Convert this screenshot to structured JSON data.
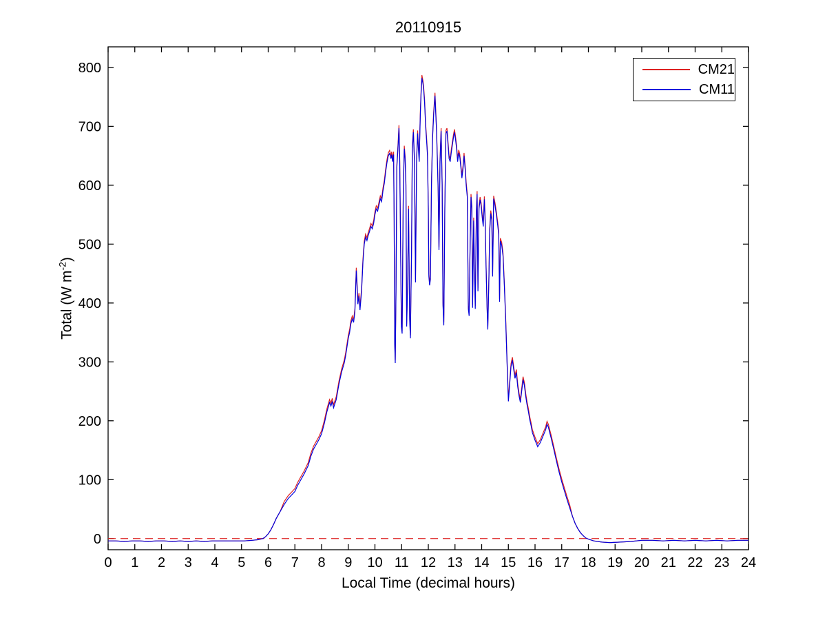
{
  "figure": {
    "title": "20110915"
  },
  "chart_data": {
    "type": "line",
    "title": "20110915",
    "xlabel": "Local Time (decimal hours)",
    "ylabel": "Total (W m^-2)",
    "ylabel_prefix": "Total (W m",
    "ylabel_exponent": "-2",
    "ylabel_suffix": ")",
    "xlim": [
      0,
      24
    ],
    "ylim": [
      -19,
      835
    ],
    "xticks": [
      0,
      1,
      2,
      3,
      4,
      5,
      6,
      7,
      8,
      9,
      10,
      11,
      12,
      13,
      14,
      15,
      16,
      17,
      18,
      19,
      20,
      21,
      22,
      23,
      24
    ],
    "yticks": [
      0,
      100,
      200,
      300,
      400,
      500,
      600,
      700,
      800
    ],
    "grid": false,
    "legend_position": "northeast",
    "series": [
      {
        "name": "CM21",
        "color": "#dd2222",
        "style": "solid",
        "description": "Nearly identical to CM11; drawn beneath it, approx +5 W m-2 visible at daytime peaks",
        "peak_offset_w": 5,
        "offset_threshold_w": 50
      },
      {
        "name": "CM11",
        "color": "#0000dd",
        "style": "solid",
        "points": [
          [
            0,
            -4
          ],
          [
            0.3,
            -4
          ],
          [
            0.6,
            -5
          ],
          [
            0.9,
            -4
          ],
          [
            1.2,
            -4
          ],
          [
            1.5,
            -5
          ],
          [
            1.8,
            -4
          ],
          [
            2.1,
            -4
          ],
          [
            2.4,
            -5
          ],
          [
            2.7,
            -4
          ],
          [
            3,
            -5
          ],
          [
            3.3,
            -4
          ],
          [
            3.6,
            -5
          ],
          [
            3.9,
            -4
          ],
          [
            4.2,
            -4
          ],
          [
            4.5,
            -4
          ],
          [
            4.8,
            -4
          ],
          [
            5.1,
            -4
          ],
          [
            5.4,
            -3
          ],
          [
            5.6,
            -2
          ],
          [
            5.8,
            0
          ],
          [
            5.9,
            3
          ],
          [
            6,
            8
          ],
          [
            6.1,
            15
          ],
          [
            6.2,
            24
          ],
          [
            6.3,
            34
          ],
          [
            6.45,
            46
          ],
          [
            6.6,
            58
          ],
          [
            6.75,
            68
          ],
          [
            6.9,
            75
          ],
          [
            7,
            80
          ],
          [
            7.1,
            90
          ],
          [
            7.2,
            98
          ],
          [
            7.35,
            110
          ],
          [
            7.5,
            124
          ],
          [
            7.6,
            140
          ],
          [
            7.7,
            152
          ],
          [
            7.8,
            160
          ],
          [
            7.9,
            168
          ],
          [
            8,
            178
          ],
          [
            8.1,
            195
          ],
          [
            8.2,
            215
          ],
          [
            8.3,
            231
          ],
          [
            8.35,
            225
          ],
          [
            8.4,
            233
          ],
          [
            8.45,
            222
          ],
          [
            8.55,
            236
          ],
          [
            8.65,
            262
          ],
          [
            8.75,
            283
          ],
          [
            8.85,
            298
          ],
          [
            8.9,
            310
          ],
          [
            9,
            340
          ],
          [
            9.05,
            350
          ],
          [
            9.1,
            365
          ],
          [
            9.15,
            373
          ],
          [
            9.2,
            367
          ],
          [
            9.25,
            385
          ],
          [
            9.3,
            455
          ],
          [
            9.33,
            430
          ],
          [
            9.36,
            398
          ],
          [
            9.4,
            412
          ],
          [
            9.44,
            388
          ],
          [
            9.5,
            420
          ],
          [
            9.55,
            470
          ],
          [
            9.6,
            500
          ],
          [
            9.65,
            512
          ],
          [
            9.7,
            506
          ],
          [
            9.75,
            515
          ],
          [
            9.8,
            522
          ],
          [
            9.85,
            530
          ],
          [
            9.9,
            526
          ],
          [
            9.95,
            535
          ],
          [
            10,
            550
          ],
          [
            10.05,
            560
          ],
          [
            10.1,
            556
          ],
          [
            10.15,
            566
          ],
          [
            10.2,
            577
          ],
          [
            10.25,
            572
          ],
          [
            10.3,
            590
          ],
          [
            10.35,
            603
          ],
          [
            10.4,
            622
          ],
          [
            10.45,
            638
          ],
          [
            10.5,
            650
          ],
          [
            10.55,
            654
          ],
          [
            10.6,
            645
          ],
          [
            10.63,
            652
          ],
          [
            10.66,
            640
          ],
          [
            10.7,
            652
          ],
          [
            10.72,
            540
          ],
          [
            10.74,
            330
          ],
          [
            10.76,
            298
          ],
          [
            10.79,
            420
          ],
          [
            10.82,
            630
          ],
          [
            10.86,
            660
          ],
          [
            10.9,
            697
          ],
          [
            10.93,
            640
          ],
          [
            10.96,
            500
          ],
          [
            10.99,
            360
          ],
          [
            11.02,
            348
          ],
          [
            11.06,
            580
          ],
          [
            11.1,
            662
          ],
          [
            11.13,
            645
          ],
          [
            11.16,
            600
          ],
          [
            11.19,
            360
          ],
          [
            11.22,
            420
          ],
          [
            11.26,
            560
          ],
          [
            11.3,
            372
          ],
          [
            11.33,
            340
          ],
          [
            11.37,
            480
          ],
          [
            11.4,
            660
          ],
          [
            11.44,
            690
          ],
          [
            11.48,
            640
          ],
          [
            11.52,
            435
          ],
          [
            11.56,
            640
          ],
          [
            11.6,
            688
          ],
          [
            11.63,
            660
          ],
          [
            11.66,
            640
          ],
          [
            11.7,
            720
          ],
          [
            11.73,
            755
          ],
          [
            11.76,
            782
          ],
          [
            11.8,
            772
          ],
          [
            11.83,
            760
          ],
          [
            11.86,
            740
          ],
          [
            11.9,
            700
          ],
          [
            11.94,
            672
          ],
          [
            11.97,
            650
          ],
          [
            12,
            560
          ],
          [
            12.02,
            445
          ],
          [
            12.05,
            430
          ],
          [
            12.08,
            440
          ],
          [
            12.12,
            600
          ],
          [
            12.16,
            680
          ],
          [
            12.2,
            720
          ],
          [
            12.25,
            752
          ],
          [
            12.28,
            722
          ],
          [
            12.31,
            690
          ],
          [
            12.34,
            640
          ],
          [
            12.37,
            590
          ],
          [
            12.4,
            490
          ],
          [
            12.44,
            640
          ],
          [
            12.48,
            692
          ],
          [
            12.52,
            600
          ],
          [
            12.55,
            396
          ],
          [
            12.58,
            362
          ],
          [
            12.62,
            560
          ],
          [
            12.66,
            688
          ],
          [
            12.7,
            692
          ],
          [
            12.74,
            668
          ],
          [
            12.78,
            645
          ],
          [
            12.82,
            640
          ],
          [
            12.86,
            655
          ],
          [
            12.9,
            668
          ],
          [
            12.94,
            680
          ],
          [
            12.98,
            690
          ],
          [
            13.02,
            678
          ],
          [
            13.06,
            662
          ],
          [
            13.1,
            640
          ],
          [
            13.14,
            655
          ],
          [
            13.18,
            648
          ],
          [
            13.22,
            630
          ],
          [
            13.26,
            612
          ],
          [
            13.3,
            628
          ],
          [
            13.34,
            650
          ],
          [
            13.38,
            628
          ],
          [
            13.42,
            600
          ],
          [
            13.46,
            580
          ],
          [
            13.5,
            390
          ],
          [
            13.53,
            378
          ],
          [
            13.56,
            480
          ],
          [
            13.6,
            580
          ],
          [
            13.63,
            560
          ],
          [
            13.66,
            392
          ],
          [
            13.7,
            540
          ],
          [
            13.73,
            460
          ],
          [
            13.76,
            390
          ],
          [
            13.8,
            552
          ],
          [
            13.83,
            585
          ],
          [
            13.86,
            420
          ],
          [
            13.9,
            560
          ],
          [
            13.94,
            575
          ],
          [
            13.98,
            565
          ],
          [
            14.02,
            545
          ],
          [
            14.06,
            530
          ],
          [
            14.1,
            576
          ],
          [
            14.13,
            540
          ],
          [
            14.16,
            470
          ],
          [
            14.2,
            392
          ],
          [
            14.23,
            355
          ],
          [
            14.27,
            440
          ],
          [
            14.3,
            520
          ],
          [
            14.34,
            552
          ],
          [
            14.38,
            540
          ],
          [
            14.41,
            445
          ],
          [
            14.45,
            577
          ],
          [
            14.5,
            565
          ],
          [
            14.55,
            550
          ],
          [
            14.6,
            532
          ],
          [
            14.64,
            515
          ],
          [
            14.67,
            402
          ],
          [
            14.7,
            505
          ],
          [
            14.75,
            498
          ],
          [
            14.8,
            480
          ],
          [
            14.85,
            430
          ],
          [
            14.9,
            370
          ],
          [
            14.95,
            300
          ],
          [
            15,
            233
          ],
          [
            15.05,
            262
          ],
          [
            15.1,
            292
          ],
          [
            15.15,
            303
          ],
          [
            15.2,
            287
          ],
          [
            15.25,
            272
          ],
          [
            15.3,
            282
          ],
          [
            15.35,
            258
          ],
          [
            15.4,
            242
          ],
          [
            15.45,
            231
          ],
          [
            15.5,
            250
          ],
          [
            15.55,
            270
          ],
          [
            15.6,
            260
          ],
          [
            15.65,
            242
          ],
          [
            15.7,
            227
          ],
          [
            15.75,
            216
          ],
          [
            15.8,
            202
          ],
          [
            15.85,
            192
          ],
          [
            15.9,
            180
          ],
          [
            16,
            167
          ],
          [
            16.1,
            156
          ],
          [
            16.2,
            163
          ],
          [
            16.3,
            174
          ],
          [
            16.4,
            185
          ],
          [
            16.45,
            194
          ],
          [
            16.5,
            189
          ],
          [
            16.55,
            180
          ],
          [
            16.6,
            171
          ],
          [
            16.7,
            152
          ],
          [
            16.8,
            132
          ],
          [
            16.9,
            113
          ],
          [
            17,
            96
          ],
          [
            17.1,
            81
          ],
          [
            17.2,
            66
          ],
          [
            17.3,
            52
          ],
          [
            17.4,
            38
          ],
          [
            17.5,
            26
          ],
          [
            17.6,
            17
          ],
          [
            17.7,
            10
          ],
          [
            17.8,
            5
          ],
          [
            17.9,
            1
          ],
          [
            18,
            -1
          ],
          [
            18.2,
            -4
          ],
          [
            18.5,
            -6
          ],
          [
            18.8,
            -7
          ],
          [
            19.2,
            -6
          ],
          [
            19.6,
            -5
          ],
          [
            20,
            -3
          ],
          [
            20.4,
            -3
          ],
          [
            20.8,
            -4
          ],
          [
            21.2,
            -3
          ],
          [
            21.6,
            -4
          ],
          [
            22,
            -3
          ],
          [
            22.4,
            -4
          ],
          [
            22.8,
            -3
          ],
          [
            23.2,
            -4
          ],
          [
            23.6,
            -3
          ],
          [
            24,
            -3
          ]
        ]
      },
      {
        "name": "zero-reference",
        "color": "#dd2222",
        "style": "dashed",
        "y": 0
      }
    ]
  }
}
